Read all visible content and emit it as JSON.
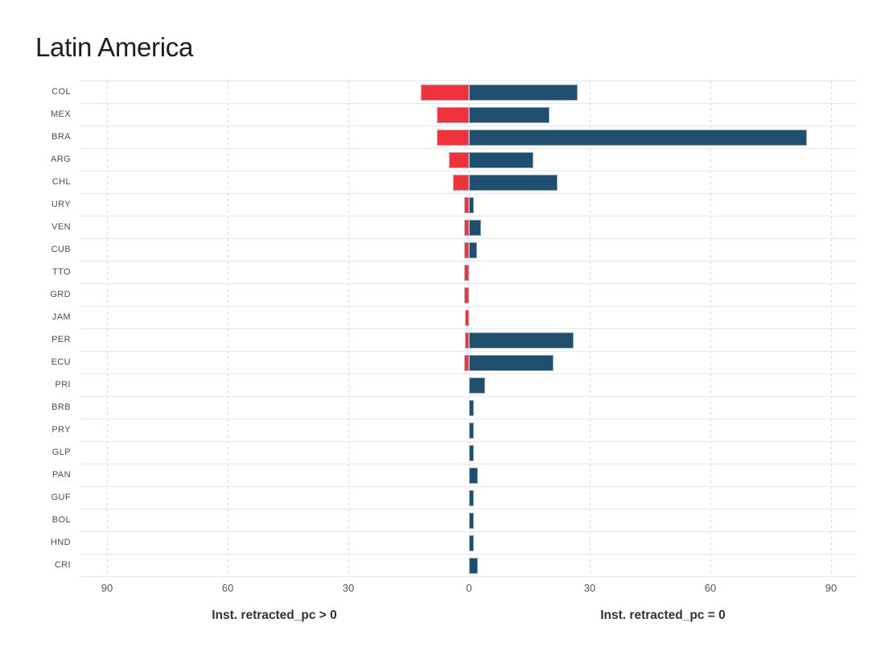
{
  "page": {
    "title": "Latin America"
  },
  "chart_data": {
    "type": "bar",
    "subtype": "diverging-horizontal",
    "title": "Latin America",
    "categories": [
      "COL",
      "MEX",
      "BRA",
      "ARG",
      "CHL",
      "URY",
      "VEN",
      "CUB",
      "TTO",
      "GRD",
      "JAM",
      "PER",
      "ECU",
      "PRI",
      "BRB",
      "PRY",
      "GLP",
      "PAN",
      "GUF",
      "BOL",
      "HND",
      "CRI"
    ],
    "series": [
      {
        "name": "Inst. retracted_pc > 0",
        "side": "left",
        "color": "#F0323C",
        "values": [
          12,
          8,
          8,
          5,
          4,
          1.2,
          1.2,
          1.2,
          1.2,
          1.2,
          1,
          1,
          1.2,
          0,
          0,
          0,
          0,
          0,
          0,
          0,
          0,
          0
        ]
      },
      {
        "name": "Inst. retracted_pc = 0",
        "side": "right",
        "color": "#1F4E6E",
        "values": [
          27,
          20,
          84,
          16,
          22,
          1.1,
          3,
          2,
          0,
          0,
          0,
          26,
          21,
          4,
          1.2,
          1.2,
          1.2,
          2.2,
          1.2,
          1.2,
          1.2,
          2.2
        ]
      }
    ],
    "x_axis": {
      "tick_labels": [
        "90",
        "60",
        "30",
        "0",
        "30",
        "60",
        "90"
      ],
      "tick_units": [
        -90,
        -60,
        -30,
        0,
        30,
        60,
        90
      ],
      "xlim": [
        -96,
        96
      ]
    },
    "axis_captions": {
      "left": "Inst. retracted_pc > 0",
      "right": "Inst. retracted_pc = 0"
    },
    "legend": "none",
    "grid": {
      "vertical": "dashed-light-gray",
      "horizontal": "solid-light-gray"
    }
  },
  "colors": {
    "red": "#F0323C",
    "blue": "#1F4E6E",
    "grid_horizontal": "#e7e7e7",
    "grid_vertical": "#d8d8d8",
    "title_text": "#1f1f1f",
    "axis_text": "#4d4d4d",
    "caption_text": "#333333",
    "bar_border": "#b9c6d0"
  }
}
